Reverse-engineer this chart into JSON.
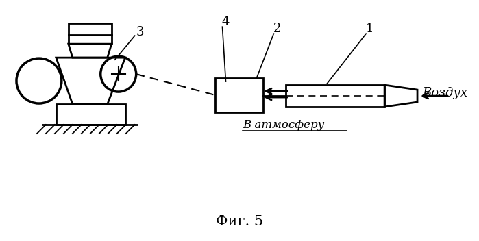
{
  "title": "Фиг. 5",
  "background_color": "#ffffff",
  "line_color": "#000000",
  "text_vozdukh": "Воздух",
  "text_atmosferu": "В атмосферу",
  "label_1": "1",
  "label_2": "2",
  "label_3": "3",
  "label_4": "4"
}
